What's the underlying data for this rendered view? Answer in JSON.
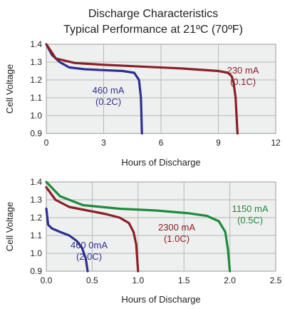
{
  "figure": {
    "title_line1": "Discharge Characteristics",
    "title_line2": "Typical Performance at 21ºC (70ºF)"
  },
  "chart_data": [
    {
      "type": "line",
      "xlabel": "Hours of Discharge",
      "ylabel": "Cell Voltage",
      "xlim": [
        0,
        12
      ],
      "ylim": [
        0.9,
        1.4
      ],
      "xticks": [
        0,
        3,
        6,
        9,
        12
      ],
      "xtick_labels": [
        "0",
        "3",
        "6",
        "9",
        "12"
      ],
      "yticks": [
        0.9,
        1.0,
        1.1,
        1.2,
        1.3,
        1.4
      ],
      "ytick_labels": [
        "0.9",
        "1.0",
        "1.1",
        "1.2",
        "1.3",
        "1.4"
      ],
      "grid": true,
      "series": [
        {
          "color": "#2f2f8f",
          "label_lines": [
            "460 mA",
            "(0.2C)"
          ],
          "points": [
            [
              0,
              1.4
            ],
            [
              0.3,
              1.34
            ],
            [
              0.7,
              1.3
            ],
            [
              1.2,
              1.27
            ],
            [
              2,
              1.26
            ],
            [
              3,
              1.255
            ],
            [
              4,
              1.25
            ],
            [
              4.6,
              1.24
            ],
            [
              4.85,
              1.2
            ],
            [
              4.95,
              1.1
            ],
            [
              5.0,
              0.9
            ]
          ]
        },
        {
          "color": "#8a1f24",
          "label_lines": [
            "230 mA",
            "(0.1C)"
          ],
          "points": [
            [
              0,
              1.4
            ],
            [
              0.5,
              1.32
            ],
            [
              1.5,
              1.295
            ],
            [
              3,
              1.285
            ],
            [
              5,
              1.275
            ],
            [
              7,
              1.265
            ],
            [
              9,
              1.25
            ],
            [
              9.5,
              1.24
            ],
            [
              9.7,
              1.22
            ],
            [
              9.8,
              1.18
            ],
            [
              9.9,
              1.1
            ],
            [
              10.0,
              0.9
            ]
          ]
        }
      ]
    },
    {
      "type": "line",
      "xlabel": "Hours of Discharge",
      "ylabel": "Cell Voltage",
      "xlim": [
        0,
        2.5
      ],
      "ylim": [
        0.9,
        1.4
      ],
      "xticks": [
        0,
        0.5,
        1.0,
        1.5,
        2.0,
        2.5
      ],
      "xtick_labels": [
        "0.0",
        "0.5",
        "1.0",
        "1.5",
        "2.0",
        "2.5"
      ],
      "yticks": [
        0.9,
        1.0,
        1.1,
        1.2,
        1.3,
        1.4
      ],
      "ytick_labels": [
        "0.9",
        "1.0",
        "1.1",
        "1.2",
        "1.3",
        "1.4"
      ],
      "grid": true,
      "series": [
        {
          "color": "#2f2f8f",
          "label_lines": [
            "460 0mA",
            "(2.0C)"
          ],
          "points": [
            [
              0,
              1.25
            ],
            [
              0.02,
              1.16
            ],
            [
              0.06,
              1.14
            ],
            [
              0.15,
              1.12
            ],
            [
              0.25,
              1.1
            ],
            [
              0.33,
              1.07
            ],
            [
              0.39,
              1.03
            ],
            [
              0.43,
              0.97
            ],
            [
              0.45,
              0.9
            ]
          ]
        },
        {
          "color": "#8a1f24",
          "label_lines": [
            "2300 mA",
            "(1.0C)"
          ],
          "points": [
            [
              0,
              1.37
            ],
            [
              0.1,
              1.3
            ],
            [
              0.25,
              1.26
            ],
            [
              0.45,
              1.24
            ],
            [
              0.65,
              1.22
            ],
            [
              0.8,
              1.2
            ],
            [
              0.9,
              1.17
            ],
            [
              0.95,
              1.12
            ],
            [
              0.98,
              1.05
            ],
            [
              1.0,
              0.9
            ]
          ]
        },
        {
          "color": "#1f8a3c",
          "label_lines": [
            "1150 mA",
            "(0.5C)"
          ],
          "points": [
            [
              0,
              1.4
            ],
            [
              0.15,
              1.32
            ],
            [
              0.4,
              1.27
            ],
            [
              0.8,
              1.25
            ],
            [
              1.2,
              1.24
            ],
            [
              1.55,
              1.225
            ],
            [
              1.75,
              1.21
            ],
            [
              1.88,
              1.18
            ],
            [
              1.95,
              1.12
            ],
            [
              1.98,
              1.02
            ],
            [
              2.0,
              0.9
            ]
          ]
        }
      ]
    }
  ]
}
